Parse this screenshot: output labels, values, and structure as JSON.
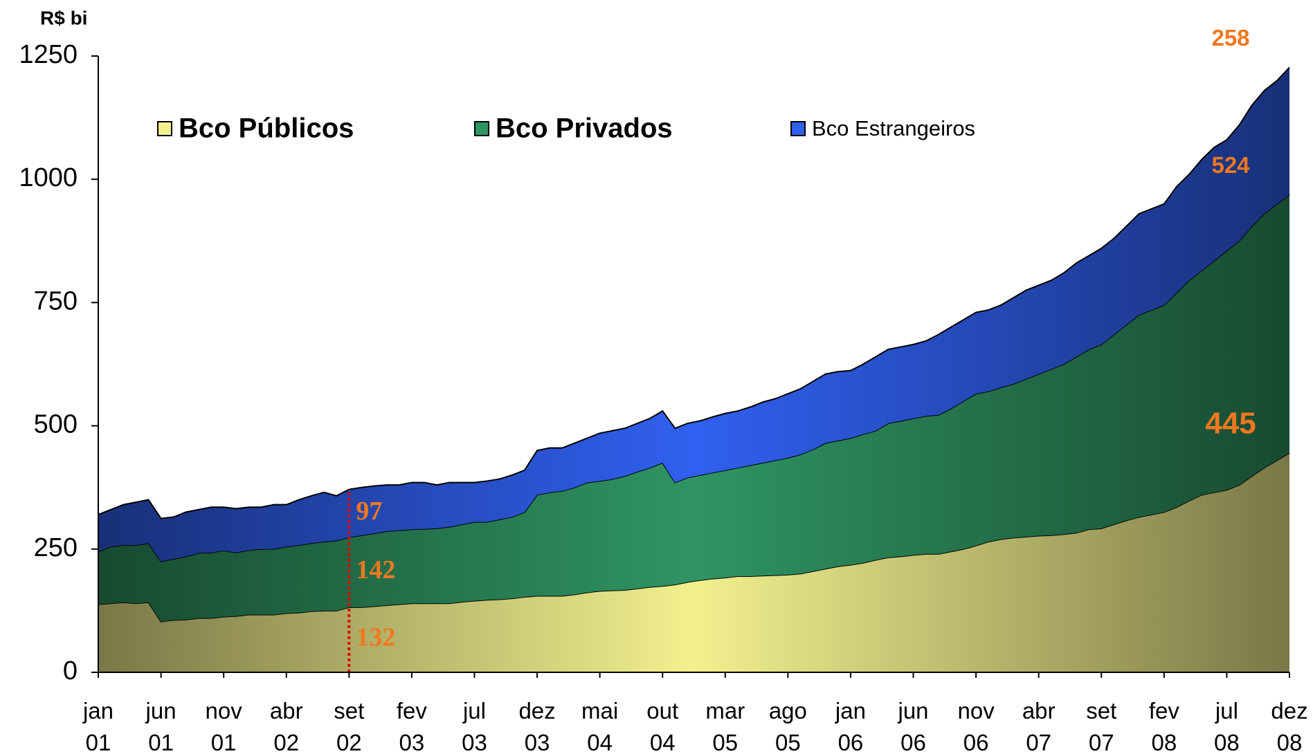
{
  "chart_data": {
    "type": "stacked-area",
    "unit_label": "R$ bi",
    "categories": [
      "jan 01",
      null,
      null,
      null,
      null,
      "jun 01",
      null,
      null,
      null,
      null,
      "nov 01",
      null,
      null,
      null,
      null,
      "abr 02",
      null,
      null,
      null,
      null,
      "set 02",
      null,
      null,
      null,
      null,
      "fev 03",
      null,
      null,
      null,
      null,
      "jul 03",
      null,
      null,
      null,
      null,
      "dez 03",
      null,
      null,
      null,
      null,
      "mai 04",
      null,
      null,
      null,
      null,
      "out 04",
      null,
      null,
      null,
      null,
      "mar 05",
      null,
      null,
      null,
      null,
      "ago 05",
      null,
      null,
      null,
      null,
      "jan 06",
      null,
      null,
      null,
      null,
      "jun 06",
      null,
      null,
      null,
      null,
      "nov 06",
      null,
      null,
      null,
      null,
      "abr 07",
      null,
      null,
      null,
      null,
      "set 07",
      null,
      null,
      null,
      null,
      "fev 08",
      null,
      null,
      null,
      null,
      "jul 08",
      null,
      null,
      null,
      null,
      "dez 08"
    ],
    "series": [
      {
        "name": "Bco Públicos",
        "color": "#f2f08e",
        "values": [
          138,
          140,
          142,
          140,
          142,
          103,
          106,
          107,
          110,
          110,
          113,
          114,
          117,
          117,
          117,
          120,
          121,
          124,
          125,
          125,
          132,
          132,
          134,
          136,
          138,
          140,
          140,
          140,
          140,
          143,
          145,
          147,
          148,
          150,
          153,
          155,
          155,
          155,
          158,
          162,
          165,
          166,
          167,
          170,
          173,
          175,
          178,
          183,
          187,
          190,
          192,
          195,
          195,
          196,
          197,
          198,
          200,
          205,
          210,
          215,
          218,
          222,
          228,
          233,
          235,
          238,
          240,
          240,
          245,
          250,
          257,
          265,
          270,
          273,
          275,
          277,
          278,
          280,
          283,
          290,
          292,
          300,
          308,
          315,
          320,
          325,
          335,
          348,
          360,
          365,
          370,
          380,
          398,
          415,
          430,
          445
        ]
      },
      {
        "name": "Bco Privados",
        "color": "#2f9462",
        "values": [
          107,
          115,
          116,
          118,
          120,
          122,
          124,
          128,
          132,
          133,
          134,
          129,
          131,
          133,
          133,
          135,
          137,
          138,
          140,
          142,
          142,
          146,
          148,
          150,
          150,
          150,
          151,
          152,
          155,
          157,
          160,
          158,
          162,
          165,
          172,
          205,
          210,
          213,
          217,
          223,
          223,
          226,
          231,
          237,
          242,
          250,
          207,
          212,
          213,
          215,
          218,
          220,
          225,
          229,
          233,
          237,
          242,
          247,
          255,
          255,
          257,
          261,
          262,
          272,
          275,
          277,
          280,
          282,
          290,
          300,
          308,
          305,
          308,
          312,
          320,
          328,
          337,
          345,
          357,
          365,
          373,
          385,
          397,
          410,
          415,
          420,
          435,
          447,
          455,
          470,
          485,
          495,
          507,
          515,
          520,
          524
        ]
      },
      {
        "name": "Bco Estrangeiros",
        "color": "#3060f0",
        "values": [
          75,
          75,
          82,
          87,
          88,
          87,
          85,
          90,
          88,
          92,
          88,
          89,
          87,
          85,
          90,
          85,
          92,
          96,
          100,
          91,
          97,
          97,
          96,
          94,
          92,
          95,
          94,
          88,
          90,
          85,
          80,
          83,
          82,
          85,
          85,
          90,
          90,
          87,
          90,
          90,
          97,
          98,
          97,
          98,
          100,
          105,
          110,
          110,
          110,
          113,
          115,
          115,
          118,
          123,
          125,
          130,
          133,
          138,
          140,
          140,
          137,
          142,
          150,
          150,
          150,
          150,
          152,
          163,
          165,
          165,
          165,
          165,
          167,
          175,
          180,
          180,
          180,
          185,
          190,
          190,
          195,
          195,
          200,
          205,
          205,
          205,
          215,
          215,
          225,
          230,
          225,
          235,
          245,
          250,
          250,
          258
        ]
      }
    ],
    "ylim": [
      0,
      1250
    ],
    "yticks": [
      0,
      250,
      500,
      750,
      1000,
      1250
    ],
    "data_label_indices": [
      20,
      95
    ],
    "label_color": "#f07820"
  }
}
